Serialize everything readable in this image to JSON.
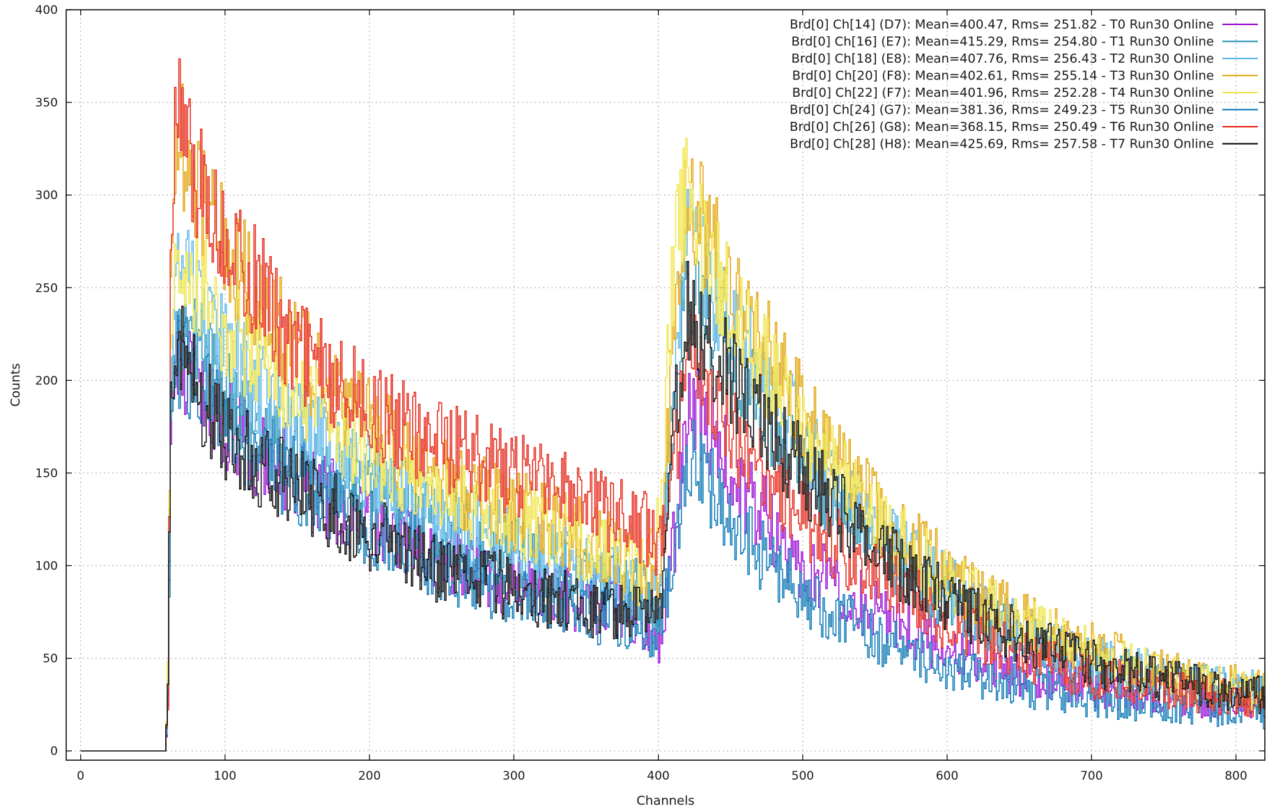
{
  "chart_data": {
    "type": "line",
    "title": "",
    "xlabel": "Channels",
    "ylabel": "Counts",
    "xlim": [
      -10,
      820
    ],
    "ylim": [
      -5,
      400
    ],
    "x_ticks": [
      0,
      100,
      200,
      300,
      400,
      500,
      600,
      700,
      800
    ],
    "y_ticks": [
      0,
      50,
      100,
      150,
      200,
      250,
      300,
      350,
      400
    ],
    "grid": true,
    "legend_position": "top-right",
    "key_points": [
      0,
      58,
      60,
      62,
      66,
      80,
      100,
      150,
      200,
      250,
      300,
      350,
      390,
      400,
      412,
      420,
      430,
      460,
      500,
      550,
      600,
      650,
      700,
      750,
      820
    ],
    "series": [
      {
        "name": "Brd[0] Ch[14] (D7): Mean=400.47, Rms= 251.82 - T0 Run30 Online",
        "color": "#9400d3",
        "values": [
          0,
          0,
          30,
          160,
          215,
          200,
          175,
          145,
          125,
          105,
          90,
          80,
          70,
          62,
          120,
          190,
          180,
          140,
          100,
          75,
          55,
          42,
          35,
          30,
          25
        ]
      },
      {
        "name": "Brd[0] Ch[16] (E7): Mean=415.29, Rms= 254.80 - T1 Run30 Online",
        "color": "#1a8db3",
        "values": [
          0,
          0,
          30,
          170,
          230,
          215,
          190,
          160,
          140,
          120,
          105,
          92,
          85,
          80,
          200,
          255,
          240,
          200,
          155,
          110,
          80,
          60,
          45,
          38,
          30
        ]
      },
      {
        "name": "Brd[0] Ch[18] (E8): Mean=407.76, Rms= 256.43 - T2 Run30 Online",
        "color": "#56b4e9",
        "values": [
          0,
          0,
          30,
          185,
          260,
          245,
          215,
          175,
          150,
          125,
          112,
          98,
          88,
          85,
          215,
          275,
          260,
          215,
          170,
          120,
          88,
          65,
          50,
          40,
          32
        ]
      },
      {
        "name": "Brd[0] Ch[20] (F8): Mean=402.61, Rms= 255.14 - T3 Run30 Online",
        "color": "#e0a000",
        "values": [
          0,
          0,
          35,
          240,
          340,
          300,
          270,
          215,
          175,
          145,
          130,
          115,
          100,
          95,
          240,
          305,
          285,
          235,
          185,
          130,
          95,
          70,
          55,
          42,
          33
        ]
      },
      {
        "name": "Brd[0] Ch[22] (F7): Mean=401.96, Rms= 252.28 - T4 Run30 Online",
        "color": "#f0e442",
        "values": [
          0,
          0,
          40,
          200,
          270,
          255,
          230,
          190,
          160,
          140,
          125,
          110,
          95,
          120,
          285,
          300,
          275,
          225,
          175,
          125,
          90,
          68,
          52,
          40,
          32
        ]
      },
      {
        "name": "Brd[0] Ch[24] (G7): Mean=381.36, Rms= 249.23 - T5 Run30 Online",
        "color": "#0072b2",
        "values": [
          0,
          0,
          30,
          165,
          215,
          200,
          175,
          145,
          120,
          100,
          85,
          75,
          68,
          60,
          110,
          160,
          150,
          115,
          85,
          60,
          45,
          35,
          28,
          24,
          20
        ]
      },
      {
        "name": "Brd[0] Ch[26] (G8): Mean=368.15, Rms= 250.49 - T6 Run30 Online",
        "color": "#e51e10",
        "values": [
          0,
          0,
          30,
          245,
          355,
          310,
          280,
          215,
          185,
          165,
          150,
          135,
          120,
          110,
          165,
          220,
          200,
          160,
          125,
          95,
          70,
          52,
          40,
          33,
          27
        ]
      },
      {
        "name": "Brd[0] Ch[28] (H8): Mean=425.69, Rms= 257.58 - T7 Run30 Online",
        "color": "#000000",
        "values": [
          0,
          0,
          30,
          175,
          220,
          195,
          170,
          140,
          118,
          98,
          88,
          78,
          72,
          70,
          185,
          240,
          225,
          190,
          150,
          110,
          80,
          62,
          48,
          38,
          30
        ]
      }
    ]
  }
}
